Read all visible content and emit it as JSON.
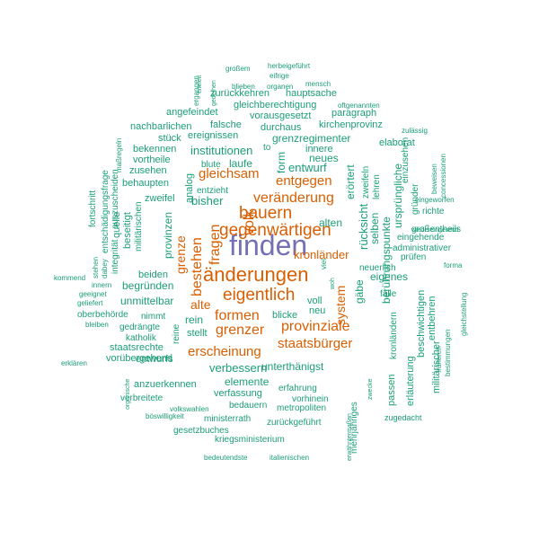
{
  "palette": {
    "teal": "#1b9e77",
    "orange": "#d95f02",
    "purple": "#7570b3"
  },
  "words": [
    {
      "text": "finden",
      "color": "purple"
    },
    {
      "text": "änderungen",
      "color": "orange"
    },
    {
      "text": "gegenwärtigen",
      "color": "orange"
    },
    {
      "text": "bauern",
      "color": "orange"
    },
    {
      "text": "veränderung",
      "color": "orange"
    },
    {
      "text": "eigentlich",
      "color": "orange"
    },
    {
      "text": "provinziale",
      "color": "orange"
    },
    {
      "text": "formen",
      "color": "orange"
    },
    {
      "text": "grenzer",
      "color": "orange"
    },
    {
      "text": "staatsbürger",
      "color": "orange"
    },
    {
      "text": "erscheinung",
      "color": "orange"
    },
    {
      "text": "gleichsam",
      "color": "orange"
    },
    {
      "text": "entgegen",
      "color": "orange"
    },
    {
      "text": "kronländer",
      "color": "orange"
    },
    {
      "text": "alte",
      "color": "orange"
    },
    {
      "text": "bestehen",
      "color": "orange"
    },
    {
      "text": "fragen",
      "color": "orange"
    },
    {
      "text": "grenze",
      "color": "orange"
    },
    {
      "text": "volk",
      "color": "orange"
    },
    {
      "text": "system",
      "color": "orange"
    },
    {
      "text": "institutionen",
      "color": "teal"
    },
    {
      "text": "entwurf",
      "color": "teal"
    },
    {
      "text": "alten",
      "color": "teal"
    },
    {
      "text": "bisher",
      "color": "teal"
    },
    {
      "text": "laufe",
      "color": "teal"
    },
    {
      "text": "neues",
      "color": "teal"
    },
    {
      "text": "verbessern",
      "color": "teal"
    },
    {
      "text": "unterthänigst",
      "color": "teal"
    },
    {
      "text": "elemente",
      "color": "teal"
    },
    {
      "text": "unmittelbar",
      "color": "teal"
    },
    {
      "text": "begründen",
      "color": "teal"
    },
    {
      "text": "beiden",
      "color": "teal"
    },
    {
      "text": "rein",
      "color": "teal"
    },
    {
      "text": "stellt",
      "color": "teal"
    },
    {
      "text": "voll",
      "color": "teal"
    },
    {
      "text": "neu",
      "color": "teal"
    },
    {
      "text": "blicke",
      "color": "teal"
    },
    {
      "text": "eigenes",
      "color": "teal"
    },
    {
      "text": "neuerlich",
      "color": "teal"
    },
    {
      "text": "grenzregimenter",
      "color": "teal"
    },
    {
      "text": "rücksicht",
      "color": "teal"
    },
    {
      "text": "erörtert",
      "color": "teal"
    },
    {
      "text": "berührungspunkte",
      "color": "teal"
    },
    {
      "text": "gäbe",
      "color": "teal"
    },
    {
      "text": "selben",
      "color": "teal"
    },
    {
      "text": "ursprüngliche",
      "color": "teal"
    },
    {
      "text": "provinzen",
      "color": "teal"
    },
    {
      "text": "form",
      "color": "teal"
    },
    {
      "text": "analog",
      "color": "teal"
    },
    {
      "text": "innere",
      "color": "teal"
    },
    {
      "text": "vorausgesetzt",
      "color": "teal"
    },
    {
      "text": "hauptsache",
      "color": "teal"
    },
    {
      "text": "gleichberechtigung",
      "color": "teal"
    },
    {
      "text": "zurückkehren",
      "color": "teal"
    },
    {
      "text": "angefeindet",
      "color": "teal"
    },
    {
      "text": "nachbarlichen",
      "color": "teal"
    },
    {
      "text": "falsche",
      "color": "teal"
    },
    {
      "text": "durchaus",
      "color": "teal"
    },
    {
      "text": "kirchenprovinz",
      "color": "teal"
    },
    {
      "text": "paragraph",
      "color": "teal"
    },
    {
      "text": "stück",
      "color": "teal"
    },
    {
      "text": "ereignissen",
      "color": "teal"
    },
    {
      "text": "bekennen",
      "color": "teal"
    },
    {
      "text": "vortheile",
      "color": "teal"
    },
    {
      "text": "zusehen",
      "color": "teal"
    },
    {
      "text": "behaupten",
      "color": "teal"
    },
    {
      "text": "blute",
      "color": "teal"
    },
    {
      "text": "entzieht",
      "color": "teal"
    },
    {
      "text": "zweifel",
      "color": "teal"
    },
    {
      "text": "beseitigt",
      "color": "teal"
    },
    {
      "text": "integrität",
      "color": "teal"
    },
    {
      "text": "quelle",
      "color": "teal"
    },
    {
      "text": "verfassung",
      "color": "teal"
    },
    {
      "text": "bedauern",
      "color": "teal"
    },
    {
      "text": "vorhinein",
      "color": "teal"
    },
    {
      "text": "erfahrung",
      "color": "teal"
    },
    {
      "text": "metropoliten",
      "color": "teal"
    },
    {
      "text": "zurückgeführt",
      "color": "teal"
    },
    {
      "text": "ministerrath",
      "color": "teal"
    },
    {
      "text": "gesetzbuches",
      "color": "teal"
    },
    {
      "text": "kriegsministerium",
      "color": "teal"
    },
    {
      "text": "entwurfs",
      "color": "teal"
    },
    {
      "text": "anzuerkennen",
      "color": "teal"
    },
    {
      "text": "verbreitete",
      "color": "teal"
    },
    {
      "text": "staatsrechte",
      "color": "teal"
    },
    {
      "text": "katholik",
      "color": "teal"
    },
    {
      "text": "gedrängte",
      "color": "teal"
    },
    {
      "text": "nimmt",
      "color": "teal"
    },
    {
      "text": "oberbehörde",
      "color": "teal"
    },
    {
      "text": "vorübergehend",
      "color": "teal"
    },
    {
      "text": "reine",
      "color": "teal"
    },
    {
      "text": "passen",
      "color": "teal"
    },
    {
      "text": "kronländern",
      "color": "teal"
    },
    {
      "text": "erläuterung",
      "color": "teal"
    },
    {
      "text": "beschwichtigen",
      "color": "teal"
    },
    {
      "text": "militärischer",
      "color": "teal"
    },
    {
      "text": "entbehren",
      "color": "teal"
    },
    {
      "text": "prüfen",
      "color": "teal"
    },
    {
      "text": "administrativer",
      "color": "teal"
    },
    {
      "text": "eingehende",
      "color": "teal"
    },
    {
      "text": "großentheils",
      "color": "teal"
    },
    {
      "text": "richte",
      "color": "teal"
    },
    {
      "text": "elaborat",
      "color": "teal"
    },
    {
      "text": "zweifeln",
      "color": "teal"
    },
    {
      "text": "lehren",
      "color": "teal"
    },
    {
      "text": "einzusehen",
      "color": "teal"
    },
    {
      "text": "gründer",
      "color": "teal"
    },
    {
      "text": "fälle",
      "color": "teal"
    },
    {
      "text": "mehrjähriges",
      "color": "teal"
    },
    {
      "text": "zugedacht",
      "color": "teal"
    },
    {
      "text": "fortschritt",
      "color": "teal"
    },
    {
      "text": "entschädigungsfrage",
      "color": "teal"
    },
    {
      "text": "auszuscheiden",
      "color": "teal"
    },
    {
      "text": "militärischen",
      "color": "teal"
    },
    {
      "text": "ergangen",
      "color": "teal"
    },
    {
      "text": "herbeigeführt",
      "color": "teal"
    },
    {
      "text": "großem",
      "color": "teal"
    },
    {
      "text": "eifrige",
      "color": "teal"
    },
    {
      "text": "blieben",
      "color": "teal"
    },
    {
      "text": "organen",
      "color": "teal"
    },
    {
      "text": "mensch",
      "color": "teal"
    },
    {
      "text": "oftgenannten",
      "color": "teal"
    },
    {
      "text": "zulässig",
      "color": "teal"
    },
    {
      "text": "beweisen",
      "color": "teal"
    },
    {
      "text": "concessionen",
      "color": "teal"
    },
    {
      "text": "eingeworfen",
      "color": "teal"
    },
    {
      "text": "wiedereingesetzt",
      "color": "teal"
    },
    {
      "text": "forma",
      "color": "teal"
    },
    {
      "text": "gleichstellung",
      "color": "teal"
    },
    {
      "text": "früheren",
      "color": "teal"
    },
    {
      "text": "bestimmungen",
      "color": "teal"
    },
    {
      "text": "maßregeln",
      "color": "teal"
    },
    {
      "text": "stehen",
      "color": "teal"
    },
    {
      "text": "dabey",
      "color": "teal"
    },
    {
      "text": "kommend",
      "color": "teal"
    },
    {
      "text": "innern",
      "color": "teal"
    },
    {
      "text": "geeignet",
      "color": "teal"
    },
    {
      "text": "geliefert",
      "color": "teal"
    },
    {
      "text": "bleiben",
      "color": "teal"
    },
    {
      "text": "erklären",
      "color": "teal"
    },
    {
      "text": "organische",
      "color": "teal"
    },
    {
      "text": "volkswahlen",
      "color": "teal"
    },
    {
      "text": "böswilligkeit",
      "color": "teal"
    },
    {
      "text": "bedeutendste",
      "color": "teal"
    },
    {
      "text": "italienischen",
      "color": "teal"
    },
    {
      "text": "erwähntermaßen",
      "color": "teal"
    },
    {
      "text": "zwecke",
      "color": "teal"
    },
    {
      "text": "eiteleit",
      "color": "teal"
    },
    {
      "text": "gedeihen",
      "color": "teal"
    },
    {
      "text": "woh",
      "color": "teal"
    },
    {
      "text": "viel",
      "color": "teal"
    },
    {
      "text": "to",
      "color": "teal"
    }
  ]
}
